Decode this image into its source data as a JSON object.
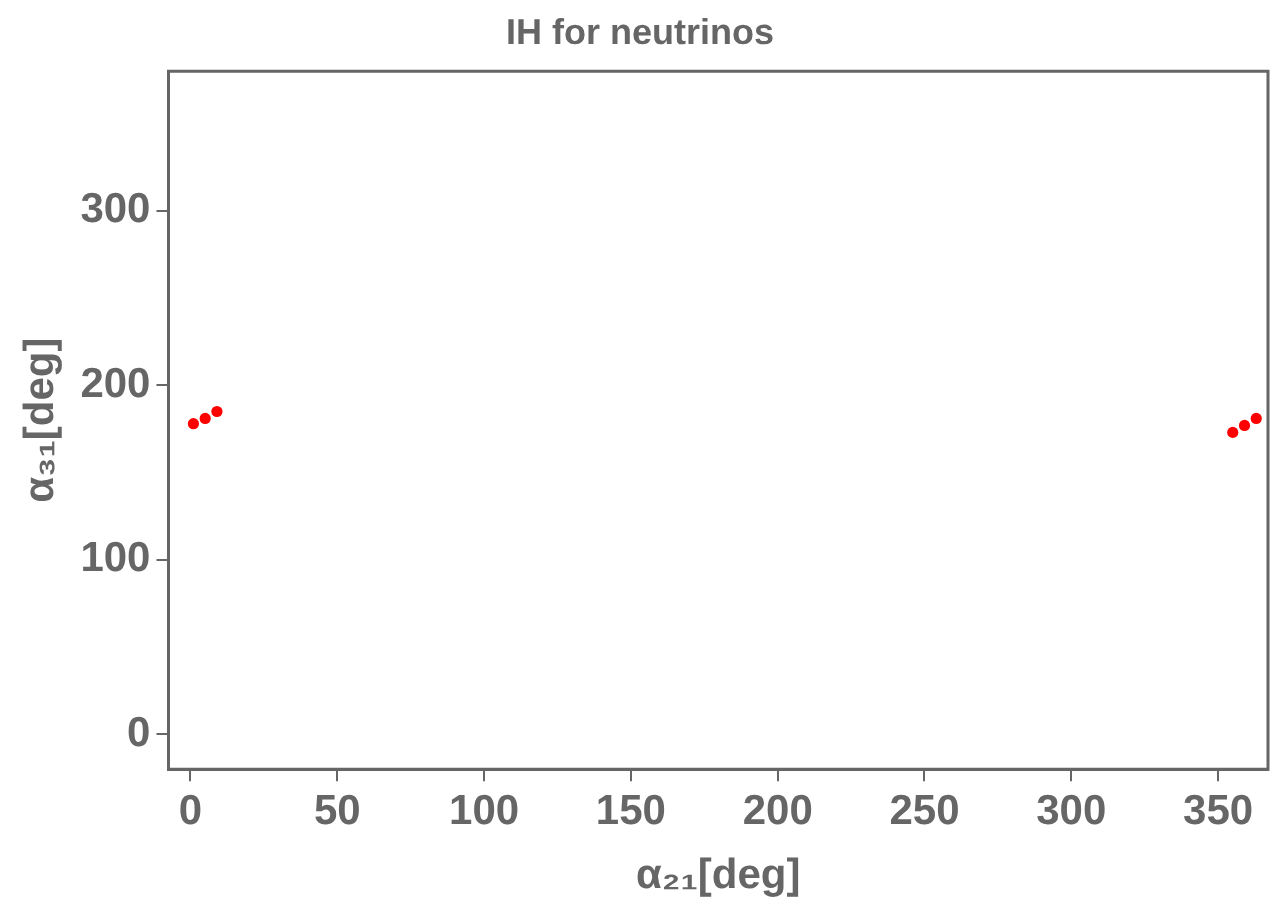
{
  "chart_data": {
    "type": "scatter",
    "title": "IH for neutrinos",
    "xlabel": "α₂₁[deg]",
    "ylabel": "α₃₁[deg]",
    "series": [
      {
        "color": "#ff0000",
        "x": [
          1,
          5,
          9,
          355,
          359,
          363
        ],
        "values": [
          178,
          181,
          185,
          173,
          177,
          181
        ]
      }
    ],
    "xlim": [
      -7.5,
      367
    ],
    "ylim": [
      -20,
      380
    ],
    "xticks": [
      0,
      50,
      100,
      150,
      200,
      250,
      300,
      350
    ],
    "yticks": [
      0,
      100,
      200,
      300
    ],
    "grid": false,
    "legend": false,
    "marker": "circle"
  }
}
